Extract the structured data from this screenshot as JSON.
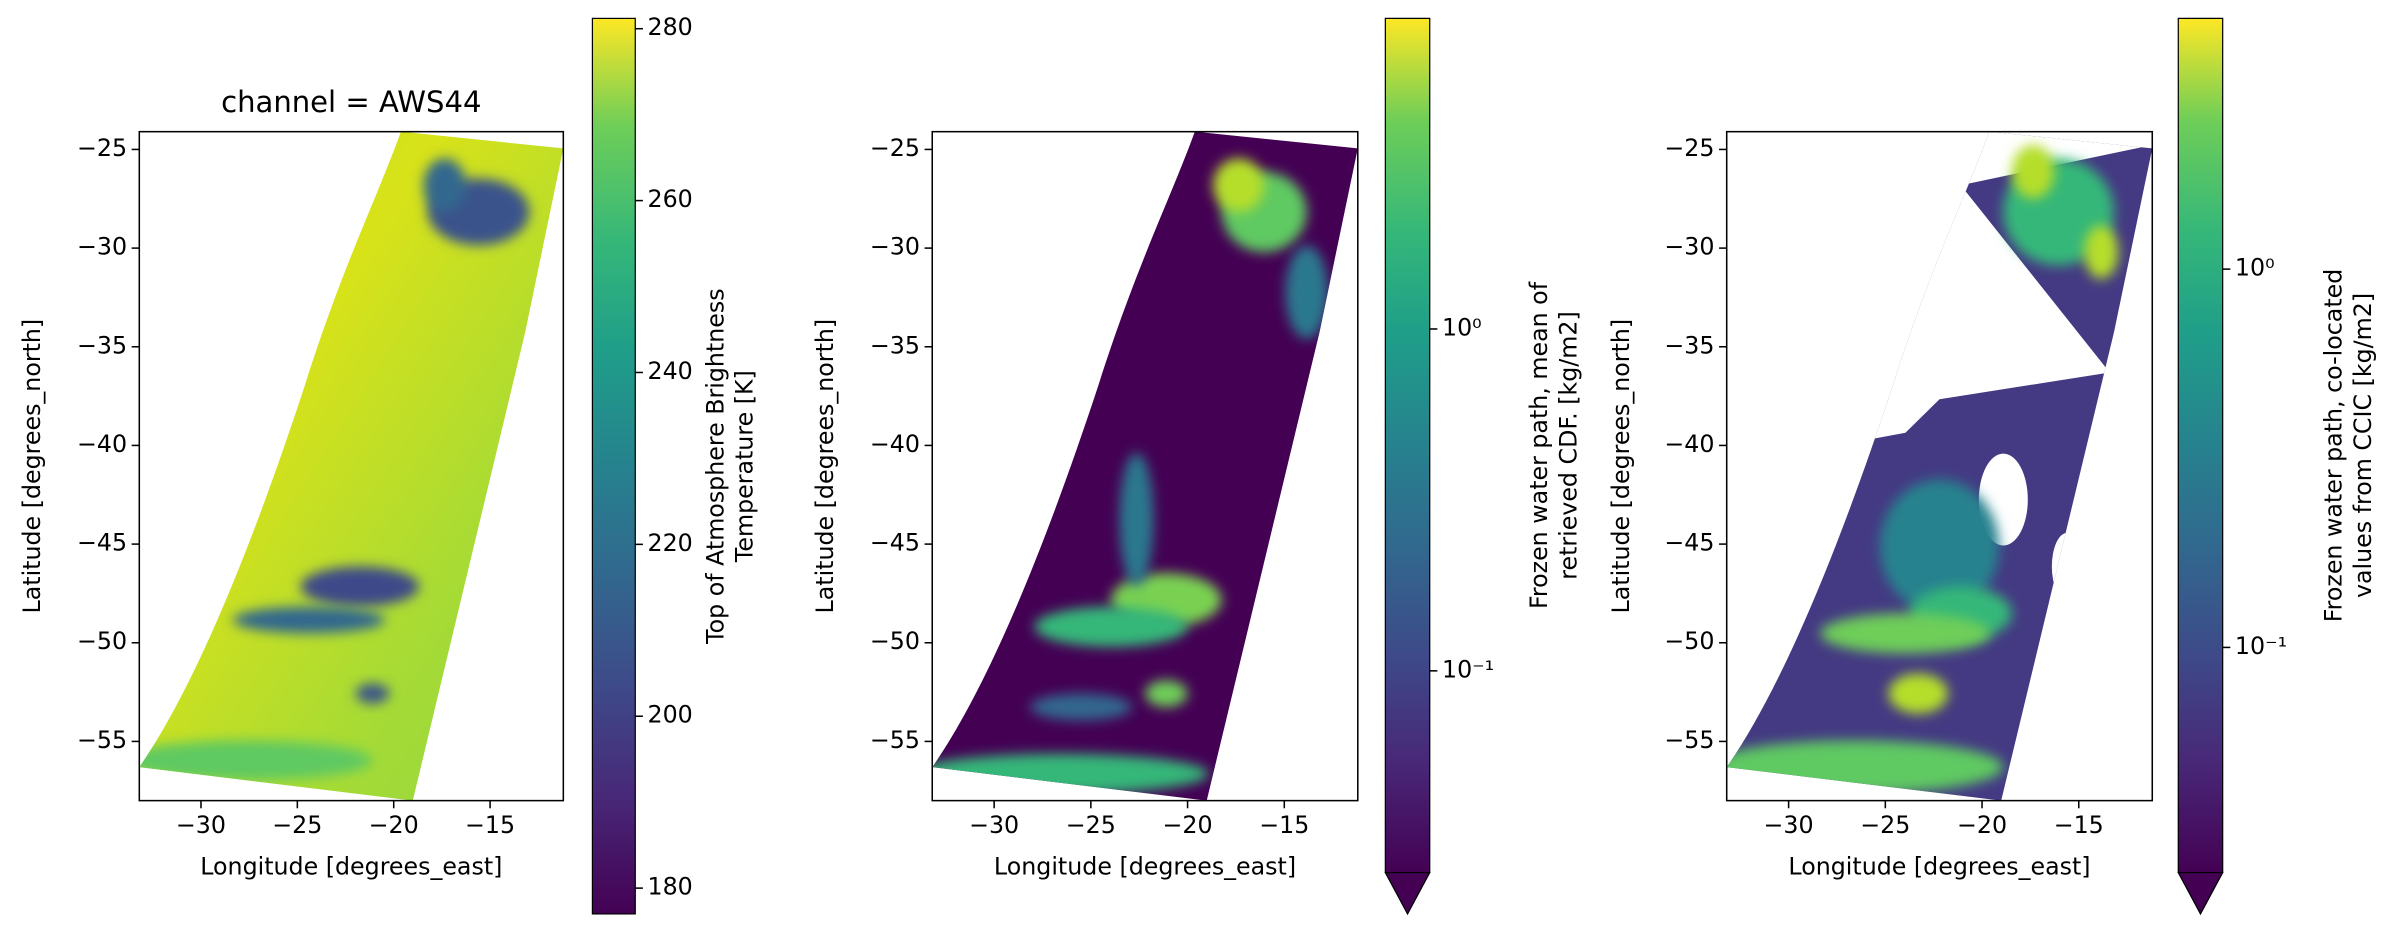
{
  "chart_data": [
    {
      "type": "heatmap",
      "title": "channel = AWS44",
      "xlabel": "Longitude [degrees_east]",
      "ylabel": "Latitude [degrees_north]",
      "xlim": [
        -33.2,
        -11.2
      ],
      "ylim": [
        -58.0,
        -24.1
      ],
      "xticks": [
        {
          "value": -30,
          "label": "−30"
        },
        {
          "value": -25,
          "label": "−25"
        },
        {
          "value": -20,
          "label": "−20"
        },
        {
          "value": -15,
          "label": "−15"
        }
      ],
      "yticks": [
        {
          "value": -25,
          "label": "−25"
        },
        {
          "value": -30,
          "label": "−30"
        },
        {
          "value": -35,
          "label": "−35"
        },
        {
          "value": -40,
          "label": "−40"
        },
        {
          "value": -45,
          "label": "−45"
        },
        {
          "value": -50,
          "label": "−50"
        },
        {
          "value": -55,
          "label": "−55"
        }
      ],
      "colorbar": {
        "label": [
          "Top of Atmosphere Brightness",
          "Temperature [K]"
        ],
        "lim": [
          177,
          281.2
        ],
        "scale": "linear",
        "ticks": [
          180,
          200,
          220,
          240,
          260,
          280
        ]
      }
    },
    {
      "type": "heatmap",
      "xlabel": "Longitude [degrees_east]",
      "ylabel": "Latitude [degrees_north]",
      "xlim": [
        -33.2,
        -11.2
      ],
      "ylim": [
        -58.0,
        -24.1
      ],
      "xticks": [
        {
          "value": -30,
          "label": "−30"
        },
        {
          "value": -25,
          "label": "−25"
        },
        {
          "value": -20,
          "label": "−20"
        },
        {
          "value": -15,
          "label": "−15"
        }
      ],
      "yticks": [
        {
          "value": -25,
          "label": "−25"
        },
        {
          "value": -30,
          "label": "−30"
        },
        {
          "value": -35,
          "label": "−35"
        },
        {
          "value": -40,
          "label": "−40"
        },
        {
          "value": -45,
          "label": "−45"
        },
        {
          "value": -50,
          "label": "−50"
        },
        {
          "value": -55,
          "label": "−55"
        }
      ],
      "colorbar": {
        "label": [
          "Frozen water path, mean of",
          "retrieved CDF. [kg/m2]"
        ],
        "lim": [
          0.0257,
          8.1
        ],
        "scale": "log",
        "extend": "min",
        "ticks": [
          {
            "value": 0.1,
            "label": "10⁻¹"
          },
          {
            "value": 1,
            "label": "10⁰"
          }
        ]
      }
    },
    {
      "type": "heatmap",
      "xlabel": "Longitude [degrees_east]",
      "ylabel": "Latitude [degrees_north]",
      "xlim": [
        -33.2,
        -11.2
      ],
      "ylim": [
        -58.0,
        -24.1
      ],
      "xticks": [
        {
          "value": -30,
          "label": "−30"
        },
        {
          "value": -25,
          "label": "−25"
        },
        {
          "value": -20,
          "label": "−20"
        },
        {
          "value": -15,
          "label": "−15"
        }
      ],
      "yticks": [
        {
          "value": -25,
          "label": "−25"
        },
        {
          "value": -30,
          "label": "−30"
        },
        {
          "value": -35,
          "label": "−35"
        },
        {
          "value": -40,
          "label": "−40"
        },
        {
          "value": -45,
          "label": "−45"
        },
        {
          "value": -50,
          "label": "−50"
        },
        {
          "value": -55,
          "label": "−55"
        }
      ],
      "colorbar": {
        "label": [
          "Frozen water path, co-located",
          "values from CCIC [kg/m2]"
        ],
        "lim": [
          0.0254,
          4.6
        ],
        "scale": "log",
        "extend": "min",
        "ticks": [
          {
            "value": 0.1,
            "label": "10⁻¹"
          },
          {
            "value": 1,
            "label": "10⁰"
          }
        ]
      }
    }
  ]
}
